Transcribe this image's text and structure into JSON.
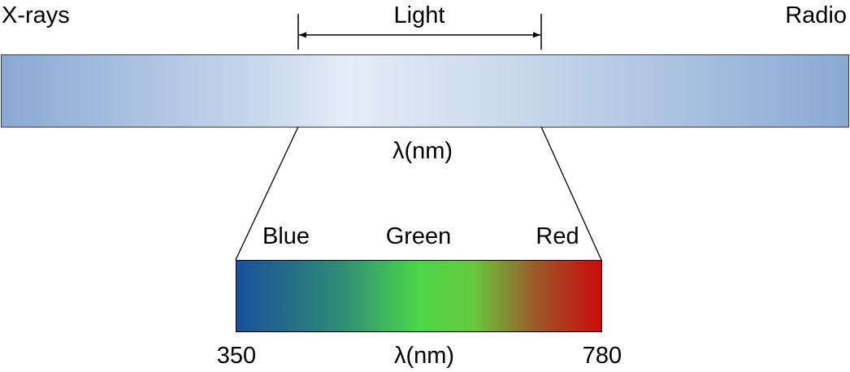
{
  "labels": {
    "xrays": "X-rays",
    "light": "Light",
    "radio": "Radio",
    "lambda_top": "λ(nm)",
    "blue": "Blue",
    "green": "Green",
    "red": "Red",
    "min": "350",
    "lambda_bottom": "λ(nm)",
    "max": "780"
  },
  "colors": {
    "blue": "#1a4f9c",
    "green": "#4cd64a",
    "red": "#cc0a0a",
    "spectrum_edge": "#8aa9d4",
    "spectrum_center": "#e4ecf6"
  }
}
